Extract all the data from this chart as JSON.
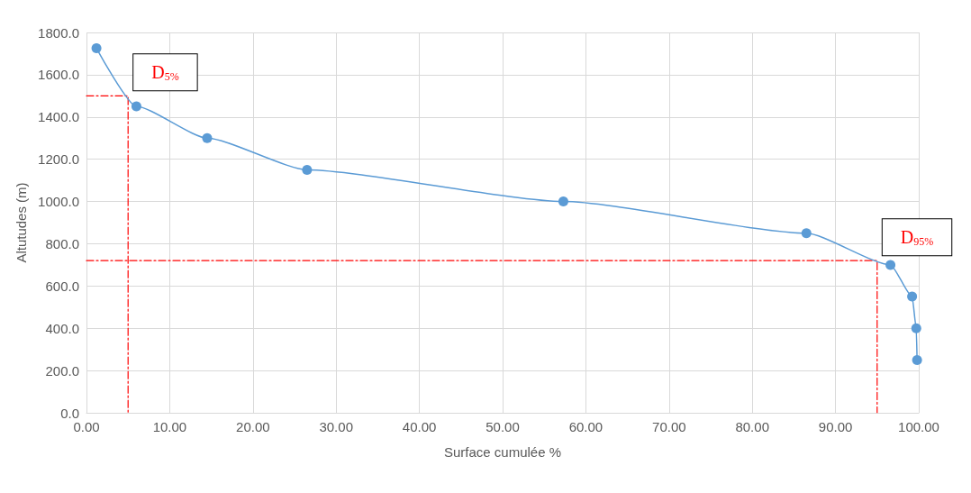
{
  "chart_data": {
    "type": "line",
    "xlabel": "Surface cumulée %",
    "ylabel": "Altutudes (m)",
    "xlim": [
      0,
      100
    ],
    "ylim": [
      0,
      1800
    ],
    "xticks": [
      {
        "value": 0,
        "label": "0.00"
      },
      {
        "value": 10,
        "label": "10.00"
      },
      {
        "value": 20,
        "label": "20.00"
      },
      {
        "value": 30,
        "label": "30.00"
      },
      {
        "value": 40,
        "label": "40.00"
      },
      {
        "value": 50,
        "label": "50.00"
      },
      {
        "value": 60,
        "label": "60.00"
      },
      {
        "value": 70,
        "label": "70.00"
      },
      {
        "value": 80,
        "label": "80.00"
      },
      {
        "value": 90,
        "label": "90.00"
      },
      {
        "value": 100,
        "label": "100.00"
      }
    ],
    "yticks": [
      {
        "value": 0,
        "label": "0.0"
      },
      {
        "value": 200,
        "label": "200.0"
      },
      {
        "value": 400,
        "label": "400.0"
      },
      {
        "value": 600,
        "label": "600.0"
      },
      {
        "value": 800,
        "label": "800.0"
      },
      {
        "value": 1000,
        "label": "1000.0"
      },
      {
        "value": 1200,
        "label": "1200.0"
      },
      {
        "value": 1400,
        "label": "1400.0"
      },
      {
        "value": 1600,
        "label": "1600.0"
      },
      {
        "value": 1800,
        "label": "1800.0"
      }
    ],
    "grid": true,
    "series": [
      {
        "color": "#5b9bd5",
        "marker": "circle",
        "line_style": "solid",
        "x": [
          1.2,
          6,
          14.5,
          26.5,
          57.3,
          86.5,
          96.6,
          99.2,
          99.7,
          99.8
        ],
        "values": [
          1725,
          1450,
          1300,
          1150,
          1000,
          850,
          700,
          550,
          400,
          250
        ]
      },
      {
        "color": "#ff0000",
        "marker": "none",
        "line_style": "dashed",
        "x": [
          0,
          5,
          5
        ],
        "values": [
          1500,
          1500,
          0
        ]
      },
      {
        "color": "#ff0000",
        "marker": "none",
        "line_style": "dashed",
        "x": [
          0,
          95,
          95
        ],
        "values": [
          720,
          720,
          0
        ]
      }
    ],
    "annotations": [
      {
        "text": "D$_{5%}$",
        "x": 5,
        "y": 1500
      },
      {
        "text": "D$_{95%}$",
        "x": 95,
        "y": 720
      }
    ]
  }
}
